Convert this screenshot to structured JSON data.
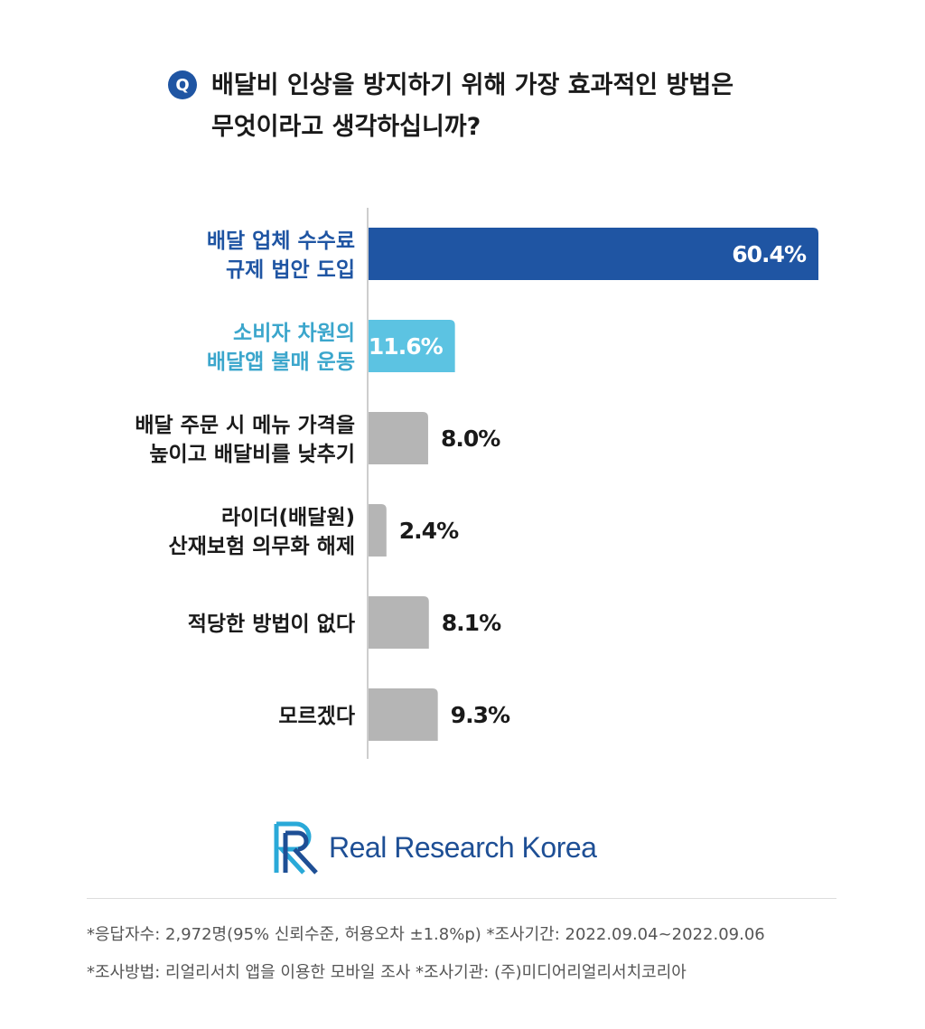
{
  "question": {
    "badge": "Q",
    "text": "배달비 인상을 방지하기 위해 가장 효과적인 방법은\n무엇이라고 생각하십니까?"
  },
  "chart_data": {
    "type": "bar",
    "orientation": "horizontal",
    "categories": [
      [
        "배달 업체 수수료",
        "규제 법안 도입"
      ],
      [
        "소비자 차원의",
        "배달앱 불매 운동"
      ],
      [
        "배달 주문 시 메뉴 가격을",
        "높이고 배달비를 낮추기"
      ],
      [
        "라이더(배달원)",
        "산재보험 의무화 해제"
      ],
      [
        "적당한 방법이 없다"
      ],
      [
        "모르겠다"
      ]
    ],
    "values": [
      60.4,
      11.6,
      8.0,
      2.4,
      8.1,
      9.3
    ],
    "value_labels": [
      "60.4%",
      "11.6%",
      "8.0%",
      "2.4%",
      "8.1%",
      "9.3%"
    ],
    "colors": [
      "#1f55a3",
      "#5cc3e2",
      "#b5b5b5",
      "#b5b5b5",
      "#b5b5b5",
      "#b5b5b5"
    ],
    "label_colors": [
      "#1f55a3",
      "#3ba6cc",
      "#1a1a1a",
      "#1a1a1a",
      "#1a1a1a",
      "#1a1a1a"
    ],
    "xlim": [
      0,
      60.4
    ],
    "grid": false
  },
  "logo": {
    "text": "Real Research Korea",
    "icon": "rr-logo-icon",
    "color": "#1e4f95"
  },
  "footnotes": {
    "line1": "*응답자수: 2,972명(95% 신뢰수준, 허용오차 ±1.8%p)  *조사기간: 2022.09.04~2022.09.06",
    "line2": "*조사방법: 리얼리서치 앱을 이용한 모바일 조사  *조사기관: (주)미디어리얼리서치코리아"
  }
}
